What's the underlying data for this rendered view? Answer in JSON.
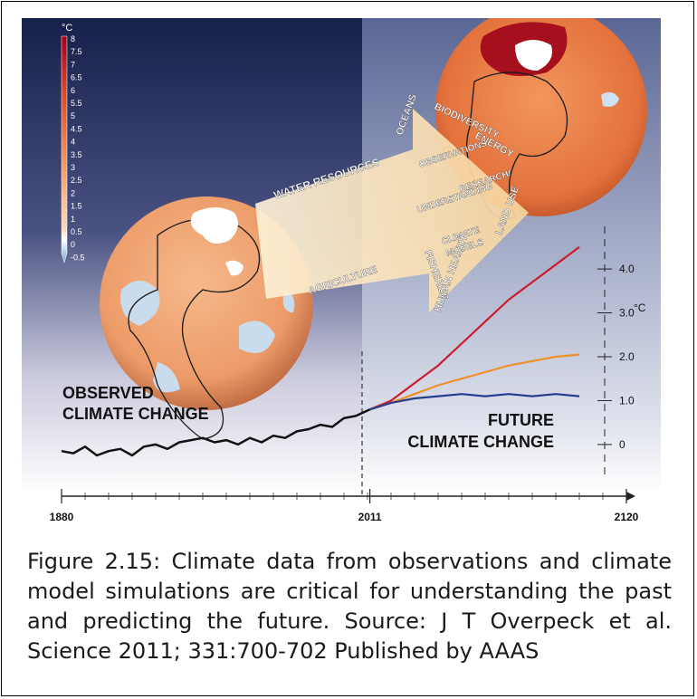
{
  "chart_data": {
    "type": "line",
    "scale_unit": "°C",
    "scale_ticks": [
      "8",
      "7.5",
      "7",
      "6.5",
      "6",
      "5.5",
      "5",
      "4.5",
      "4",
      "3.5",
      "3",
      "2.5",
      "2",
      "1.5",
      "1",
      "0.5",
      "0",
      "-0.5"
    ],
    "x_ticks": [
      "1880",
      "2011",
      "2120"
    ],
    "y_ticks": [
      "4.0",
      "3.0",
      "2.0",
      "1.0",
      "0"
    ],
    "y_unit": "°C",
    "xlim": [
      1880,
      2120
    ],
    "ylim": [
      -0.6,
      4.6
    ],
    "observed": {
      "label_line1": "OBSERVED",
      "label_line2": "CLIMATE CHANGE",
      "x": [
        1880,
        1885,
        1890,
        1895,
        1900,
        1905,
        1910,
        1915,
        1920,
        1925,
        1930,
        1935,
        1940,
        1945,
        1950,
        1955,
        1960,
        1965,
        1970,
        1975,
        1980,
        1985,
        1990,
        1995,
        2000,
        2005,
        2011
      ],
      "y": [
        -0.15,
        -0.2,
        -0.05,
        -0.25,
        -0.15,
        -0.1,
        -0.25,
        -0.05,
        0.0,
        -0.1,
        0.05,
        0.1,
        0.15,
        0.05,
        0.1,
        0.0,
        0.15,
        0.05,
        0.2,
        0.15,
        0.3,
        0.35,
        0.45,
        0.4,
        0.6,
        0.65,
        0.8
      ]
    },
    "projections": [
      {
        "color": "#cc1c2c",
        "x": [
          2011,
          2020,
          2030,
          2040,
          2050,
          2060,
          2070,
          2080,
          2090,
          2100
        ],
        "y": [
          0.8,
          1.0,
          1.4,
          1.8,
          2.3,
          2.8,
          3.3,
          3.7,
          4.1,
          4.5
        ]
      },
      {
        "color": "#f0902a",
        "x": [
          2011,
          2020,
          2030,
          2040,
          2050,
          2060,
          2070,
          2080,
          2090,
          2100
        ],
        "y": [
          0.8,
          0.95,
          1.15,
          1.35,
          1.5,
          1.65,
          1.8,
          1.9,
          2.0,
          2.05
        ]
      },
      {
        "color": "#243d8c",
        "x": [
          2011,
          2020,
          2030,
          2040,
          2050,
          2060,
          2070,
          2080,
          2090,
          2100
        ],
        "y": [
          0.8,
          0.95,
          1.05,
          1.1,
          1.15,
          1.1,
          1.15,
          1.1,
          1.15,
          1.1
        ]
      }
    ],
    "future_label_line1": "FUTURE",
    "future_label_line2": "CLIMATE CHANGE",
    "arrow_words": [
      "WATER RESOURCES",
      "OCEANS",
      "BIODIVERSITY",
      "ENERGY",
      "OBSERVATIONS",
      "RESEARCH/",
      "UNDERSTANDING",
      "LAND USE",
      "CLIMATE",
      "MODELS",
      "AGRICULTURE",
      "FISHERIES",
      "HUMAN HEALTH"
    ]
  },
  "caption": "Figure 2.15: Climate data from observations and climate model simulations are critical for understanding the past and predicting the future.  Source: J T Overpeck et al. Science 2011; 331:700-702  Published by AAAS"
}
